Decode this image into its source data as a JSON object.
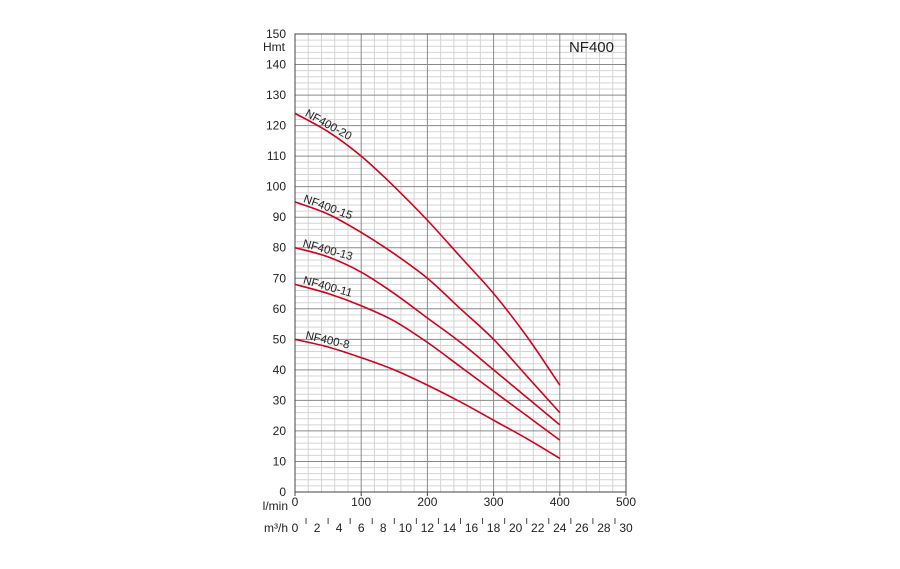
{
  "chart_data": {
    "type": "line",
    "title": "NF400",
    "ylabel": "Hmt",
    "xlabel": "l/min",
    "x2label": "m³/h",
    "xlim": [
      0,
      500
    ],
    "ylim": [
      0,
      150
    ],
    "x2lim": [
      0,
      30
    ],
    "grid": true,
    "colors": {
      "curve": "#d0021b",
      "grid_major": "#8a8a8a",
      "grid_minor": "#d4d4d4",
      "frame": "#444444"
    },
    "x_ticks": [
      "0",
      "100",
      "200",
      "300",
      "400",
      "500"
    ],
    "x2_ticks": [
      "0",
      "2",
      "4",
      "6",
      "8",
      "10",
      "12",
      "14",
      "16",
      "18",
      "20",
      "22",
      "24",
      "26",
      "28",
      "30"
    ],
    "y_ticks": [
      "0",
      "10",
      "20",
      "30",
      "40",
      "50",
      "60",
      "70",
      "80",
      "90",
      "100",
      "110",
      "120",
      "130",
      "140",
      "150"
    ],
    "series": [
      {
        "name": "NF400-20",
        "x": [
          0,
          50,
          100,
          150,
          200,
          250,
          300,
          350,
          400
        ],
        "y": [
          124,
          118,
          110,
          100,
          89,
          77,
          65,
          51,
          35
        ]
      },
      {
        "name": "NF400-15",
        "x": [
          0,
          50,
          100,
          150,
          200,
          250,
          300,
          350,
          400
        ],
        "y": [
          95,
          91,
          85,
          78,
          70,
          60,
          50,
          38,
          26
        ]
      },
      {
        "name": "NF400-13",
        "x": [
          0,
          50,
          100,
          150,
          200,
          250,
          300,
          350,
          400
        ],
        "y": [
          80,
          77,
          72,
          65,
          57,
          49,
          40,
          31,
          22
        ]
      },
      {
        "name": "NF400-11",
        "x": [
          0,
          50,
          100,
          150,
          200,
          250,
          300,
          350,
          400
        ],
        "y": [
          68,
          65,
          61,
          56,
          49,
          41,
          33,
          25,
          17
        ]
      },
      {
        "name": "NF400-8",
        "x": [
          0,
          50,
          100,
          150,
          200,
          250,
          300,
          350,
          400
        ],
        "y": [
          50,
          47.5,
          44,
          40,
          35,
          29.5,
          23.5,
          17.5,
          11
        ]
      }
    ]
  }
}
